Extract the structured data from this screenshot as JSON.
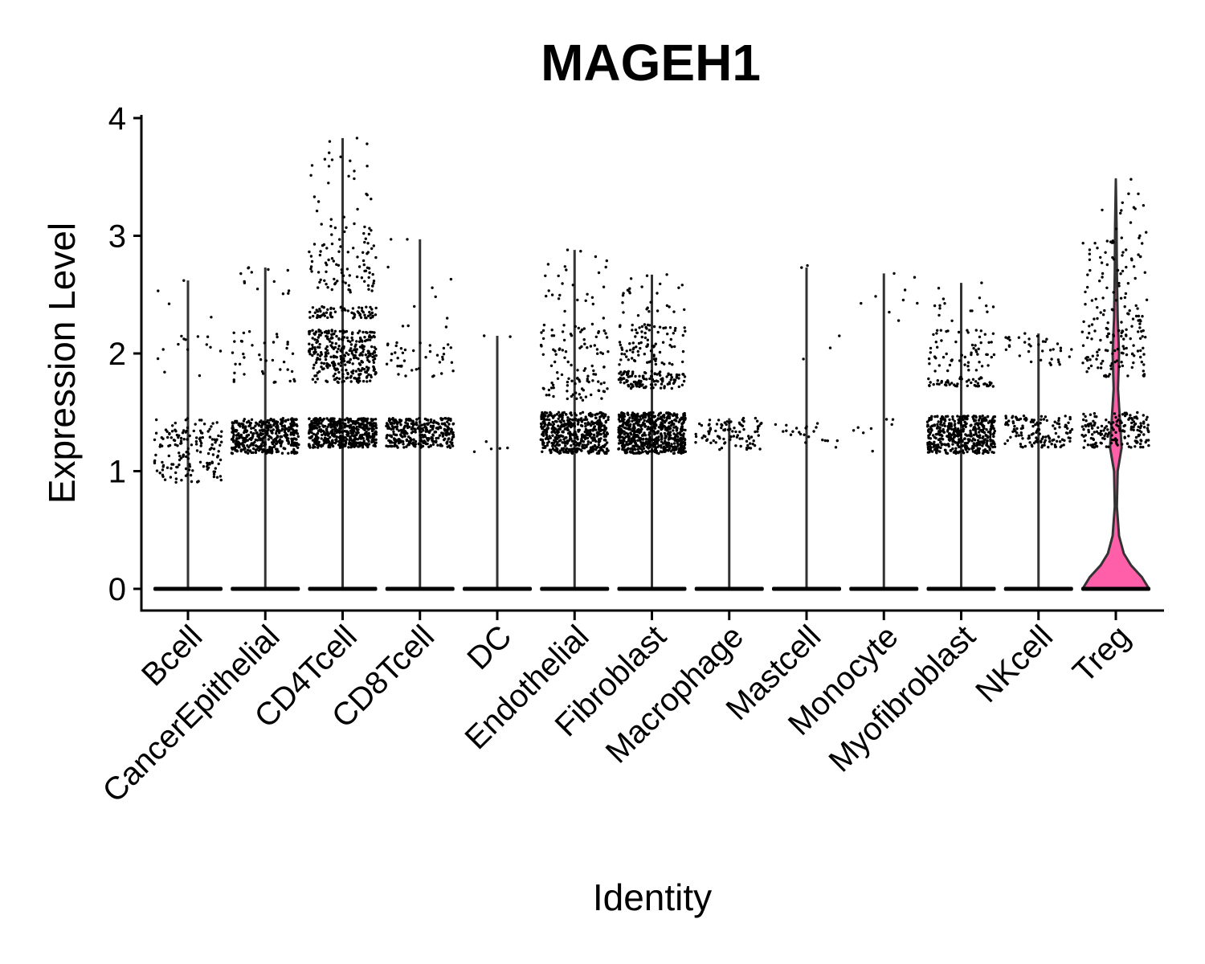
{
  "chart_data": {
    "type": "violin",
    "title": "MAGEH1",
    "xlabel": "Identity",
    "ylabel": "Expression Level",
    "ylim": [
      -0.18,
      4.05
    ],
    "yticks": [
      "0",
      "1",
      "2",
      "3",
      "4"
    ],
    "categories": [
      "Bcell",
      "CancerEpithelial",
      "CD4Tcell",
      "CD8Tcell",
      "DC",
      "Endothelial",
      "Fibroblast",
      "Macrophage",
      "Mastcell",
      "Monocyte",
      "Myofibroblast",
      "NKcell",
      "Treg"
    ],
    "max_values": [
      2.62,
      2.73,
      3.83,
      2.97,
      2.15,
      2.88,
      2.67,
      1.45,
      2.73,
      2.68,
      2.6,
      2.17,
      3.48
    ],
    "highlight": {
      "category": "Treg",
      "fill": "#ff5fa8"
    },
    "violin_width_profile": [
      {
        "y": 0.0,
        "w": 0.92
      },
      {
        "y": 0.1,
        "w": 0.72
      },
      {
        "y": 0.2,
        "w": 0.42
      },
      {
        "y": 0.3,
        "w": 0.22
      },
      {
        "y": 0.45,
        "w": 0.09
      },
      {
        "y": 0.7,
        "w": 0.03
      },
      {
        "y": 1.0,
        "w": 0.05
      },
      {
        "y": 1.2,
        "w": 0.16
      },
      {
        "y": 1.4,
        "w": 0.12
      },
      {
        "y": 1.7,
        "w": 0.06
      },
      {
        "y": 2.0,
        "w": 0.09
      },
      {
        "y": 2.3,
        "w": 0.05
      },
      {
        "y": 2.7,
        "w": 0.03
      },
      {
        "y": 3.1,
        "w": 0.02
      },
      {
        "y": 3.48,
        "w": 0.0
      }
    ],
    "jitter_density": [
      [
        {
          "lo": 0.9,
          "hi": 1.45,
          "n": 160
        },
        {
          "lo": 1.8,
          "hi": 2.15,
          "n": 14
        },
        {
          "lo": 2.3,
          "hi": 2.62,
          "n": 3
        }
      ],
      [
        {
          "lo": 1.15,
          "hi": 1.45,
          "n": 420
        },
        {
          "lo": 1.75,
          "hi": 2.2,
          "n": 40
        },
        {
          "lo": 2.5,
          "hi": 2.73,
          "n": 12
        }
      ],
      [
        {
          "lo": 1.2,
          "hi": 1.45,
          "n": 520
        },
        {
          "lo": 1.75,
          "hi": 2.2,
          "n": 320
        },
        {
          "lo": 2.3,
          "hi": 2.4,
          "n": 70
        },
        {
          "lo": 2.5,
          "hi": 3.1,
          "n": 90
        },
        {
          "lo": 3.1,
          "hi": 3.83,
          "n": 25
        }
      ],
      [
        {
          "lo": 1.2,
          "hi": 1.45,
          "n": 330
        },
        {
          "lo": 1.8,
          "hi": 2.1,
          "n": 40
        },
        {
          "lo": 2.2,
          "hi": 2.97,
          "n": 10
        }
      ],
      [
        {
          "lo": 1.15,
          "hi": 1.3,
          "n": 5
        },
        {
          "lo": 2.1,
          "hi": 2.15,
          "n": 1
        }
      ],
      [
        {
          "lo": 1.15,
          "hi": 1.5,
          "n": 520
        },
        {
          "lo": 1.6,
          "hi": 2.25,
          "n": 110
        },
        {
          "lo": 2.3,
          "hi": 2.88,
          "n": 25
        }
      ],
      [
        {
          "lo": 1.15,
          "hi": 1.5,
          "n": 650
        },
        {
          "lo": 1.7,
          "hi": 1.85,
          "n": 120
        },
        {
          "lo": 1.9,
          "hi": 2.25,
          "n": 90
        },
        {
          "lo": 2.3,
          "hi": 2.67,
          "n": 25
        }
      ],
      [
        {
          "lo": 1.18,
          "hi": 1.45,
          "n": 90
        }
      ],
      [
        {
          "lo": 1.2,
          "hi": 1.45,
          "n": 22
        },
        {
          "lo": 1.75,
          "hi": 2.15,
          "n": 3
        },
        {
          "lo": 2.7,
          "hi": 2.75,
          "n": 1
        }
      ],
      [
        {
          "lo": 1.15,
          "hi": 1.45,
          "n": 8
        },
        {
          "lo": 2.1,
          "hi": 2.68,
          "n": 8
        }
      ],
      [
        {
          "lo": 1.15,
          "hi": 1.47,
          "n": 470
        },
        {
          "lo": 1.72,
          "hi": 1.8,
          "n": 50
        },
        {
          "lo": 1.85,
          "hi": 2.2,
          "n": 60
        },
        {
          "lo": 2.25,
          "hi": 2.6,
          "n": 14
        }
      ],
      [
        {
          "lo": 1.2,
          "hi": 1.47,
          "n": 130
        },
        {
          "lo": 1.9,
          "hi": 2.15,
          "n": 35
        }
      ],
      [
        {
          "lo": 1.2,
          "hi": 1.5,
          "n": 170
        },
        {
          "lo": 1.8,
          "hi": 2.2,
          "n": 90
        },
        {
          "lo": 2.2,
          "hi": 3.0,
          "n": 90
        },
        {
          "lo": 3.0,
          "hi": 3.48,
          "n": 12
        }
      ]
    ]
  }
}
